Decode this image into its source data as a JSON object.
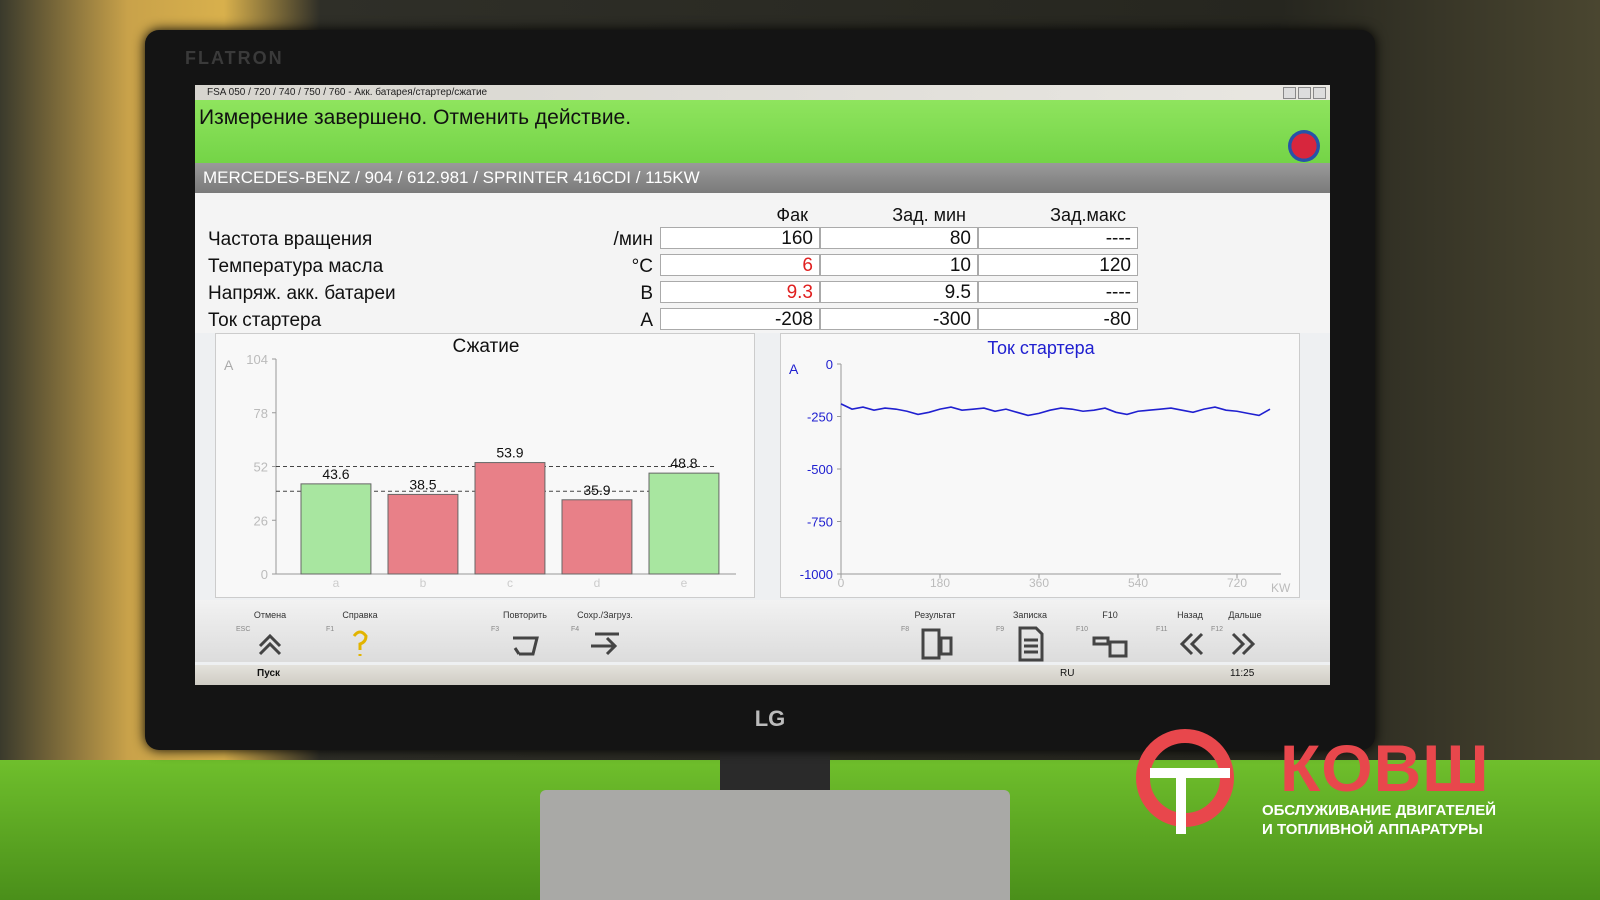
{
  "window": {
    "title": "FSA 050 / 720 / 740 / 750 / 760 - Акк. батарея/стартер/сжатие"
  },
  "status": "Измерение завершено. Отменить действие.",
  "vehicle": "MERCEDES-BENZ / 904 / 612.981 / SPRINTER 416CDI / 115KW",
  "table": {
    "headers": [
      "Фак",
      "Зад. мин",
      "Зад.макс"
    ],
    "rows": [
      {
        "name": "Частота вращения",
        "unit": "/мин",
        "actual": 160,
        "min": 80,
        "max": "----",
        "alert": false
      },
      {
        "name": "Температура масла",
        "unit": "°C",
        "actual": 6,
        "min": 10,
        "max": 120,
        "alert": true
      },
      {
        "name": "Напряж. акк. батареи",
        "unit": "В",
        "actual": 9.3,
        "min": 9.5,
        "max": "----",
        "alert": true
      },
      {
        "name": "Ток стартера",
        "unit": "A",
        "actual": -208,
        "min": -300,
        "max": -80,
        "alert": false
      }
    ]
  },
  "compression_chart": {
    "type": "bar",
    "title": "Сжатие",
    "y_label": "A",
    "categories": [
      "a",
      "b",
      "c",
      "d",
      "e"
    ],
    "values": [
      43.6,
      38.5,
      53.9,
      35.9,
      48.8
    ],
    "colors": [
      "#a8e6a0",
      "#e88088",
      "#e88088",
      "#e88088",
      "#a8e6a0"
    ],
    "ylim": [
      0,
      104
    ],
    "yticks": [
      0,
      26,
      52,
      78,
      104
    ],
    "reference_lines": [
      52,
      40
    ]
  },
  "current_chart": {
    "type": "line",
    "title": "Ток стартера",
    "y_label": "A",
    "x_label": "KW",
    "color": "#2020d0",
    "x": [
      0,
      20,
      40,
      60,
      80,
      100,
      120,
      140,
      160,
      180,
      200,
      220,
      240,
      260,
      280,
      300,
      320,
      340,
      360,
      380,
      400,
      420,
      440,
      460,
      480,
      500,
      520,
      540,
      560,
      580,
      600,
      620,
      640,
      660,
      680,
      700,
      720,
      740,
      760,
      780
    ],
    "values": [
      -190,
      -215,
      -205,
      -220,
      -210,
      -215,
      -225,
      -240,
      -230,
      -215,
      -205,
      -220,
      -215,
      -210,
      -225,
      -215,
      -230,
      -245,
      -235,
      -220,
      -210,
      -215,
      -225,
      -220,
      -210,
      -230,
      -240,
      -225,
      -220,
      -215,
      -210,
      -220,
      -230,
      -215,
      -205,
      -220,
      -225,
      -235,
      -245,
      -215
    ],
    "xlim": [
      0,
      800
    ],
    "ylim": [
      -1000,
      0
    ],
    "xticks": [
      0,
      180,
      360,
      540,
      720
    ],
    "yticks": [
      0,
      -250,
      -500,
      -750,
      -1000
    ]
  },
  "toolbar": [
    {
      "label": "Отмена",
      "key": "ESC"
    },
    {
      "label": "Справка",
      "key": "F1"
    },
    {
      "label": "Повторить",
      "key": "F3"
    },
    {
      "label": "Сохр./Загруз.",
      "key": "F4"
    },
    {
      "label": "Результат",
      "key": "F8"
    },
    {
      "label": "Записка",
      "key": "F9"
    },
    {
      "label": "F10",
      "key": "F10"
    },
    {
      "label": "Назад",
      "key": "F11"
    },
    {
      "label": "Дальше",
      "key": "F12"
    }
  ],
  "taskbar": {
    "start": "Пуск",
    "lang": "RU",
    "time": "11:25"
  },
  "monitor": {
    "brand": "LG",
    "model": "FLATRON"
  },
  "watermark": {
    "name": "КОВШ",
    "line1": "ОБСЛУЖИВАНИЕ ДВИГАТЕЛЕЙ",
    "line2": "И ТОПЛИВНОЙ АППАРАТУРЫ"
  }
}
